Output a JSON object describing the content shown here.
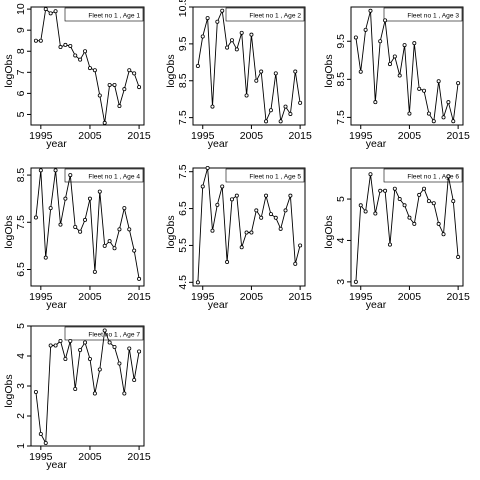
{
  "chart_data": [
    {
      "type": "line",
      "title": "Fleet no 1 , Age 1",
      "xlabel": "year",
      "ylabel": "logObs",
      "xlim": [
        1993,
        2016
      ],
      "ylim": [
        4.5,
        10.1
      ],
      "xticks": [
        1995,
        2005,
        2015
      ],
      "yticks": [
        5,
        6,
        7,
        8,
        9,
        10
      ],
      "x": [
        1994,
        1995,
        1996,
        1997,
        1998,
        1999,
        2000,
        2001,
        2002,
        2003,
        2004,
        2005,
        2006,
        2007,
        2008,
        2009,
        2010,
        2011,
        2012,
        2013,
        2014,
        2015
      ],
      "y": [
        8.5,
        8.5,
        10.0,
        9.8,
        9.9,
        8.2,
        8.3,
        8.25,
        7.8,
        7.6,
        8.0,
        7.2,
        7.1,
        5.9,
        4.6,
        6.4,
        6.4,
        5.4,
        6.2,
        7.1,
        6.95,
        6.3
      ]
    },
    {
      "type": "line",
      "title": "Fleet no 1 , Age 2",
      "xlabel": "year",
      "ylabel": "logObs",
      "xlim": [
        1993,
        2016
      ],
      "ylim": [
        7.3,
        10.5
      ],
      "xticks": [
        1995,
        2005,
        2015
      ],
      "yticks": [
        7.5,
        8.5,
        9.5,
        10.5
      ],
      "x": [
        1994,
        1995,
        1996,
        1997,
        1998,
        1999,
        2000,
        2001,
        2002,
        2003,
        2004,
        2005,
        2006,
        2007,
        2008,
        2009,
        2010,
        2011,
        2012,
        2013,
        2014,
        2015
      ],
      "y": [
        8.9,
        9.7,
        10.2,
        7.8,
        10.1,
        10.4,
        9.4,
        9.6,
        9.35,
        9.8,
        8.1,
        9.75,
        8.5,
        8.75,
        7.4,
        7.7,
        8.7,
        7.4,
        7.8,
        7.6,
        8.75,
        7.9
      ]
    },
    {
      "type": "line",
      "title": "Fleet no 1 , Age 3",
      "xlabel": "year",
      "ylabel": "logObs",
      "xlim": [
        1993,
        2016
      ],
      "ylim": [
        7.3,
        10.4
      ],
      "xticks": [
        1995,
        2005,
        2015
      ],
      "yticks": [
        7.5,
        8.5,
        9.5
      ],
      "x": [
        1994,
        1995,
        1996,
        1997,
        1998,
        1999,
        2000,
        2001,
        2002,
        2003,
        2004,
        2005,
        2006,
        2007,
        2008,
        2009,
        2010,
        2011,
        2012,
        2013,
        2014,
        2015
      ],
      "y": [
        9.6,
        8.7,
        9.8,
        10.3,
        7.9,
        9.5,
        10.05,
        8.9,
        9.1,
        8.6,
        9.4,
        7.6,
        9.45,
        8.25,
        8.2,
        7.6,
        7.4,
        8.45,
        7.5,
        7.9,
        7.4,
        8.4
      ]
    },
    {
      "type": "line",
      "title": "Fleet no 1 , Age 4",
      "xlabel": "year",
      "ylabel": "logObs",
      "xlim": [
        1993,
        2016
      ],
      "ylim": [
        6.15,
        8.65
      ],
      "xticks": [
        1995,
        2005,
        2015
      ],
      "yticks": [
        6.5,
        7.5,
        8.5
      ],
      "x": [
        1994,
        1995,
        1996,
        1997,
        1998,
        1999,
        2000,
        2001,
        2002,
        2003,
        2004,
        2005,
        2006,
        2007,
        2008,
        2009,
        2010,
        2011,
        2012,
        2013,
        2014,
        2015
      ],
      "y": [
        7.6,
        8.6,
        6.75,
        7.8,
        8.6,
        7.45,
        8.0,
        8.5,
        7.4,
        7.3,
        7.55,
        8.0,
        6.45,
        8.15,
        7.0,
        7.1,
        6.95,
        7.35,
        7.8,
        7.35,
        6.9,
        6.3
      ]
    },
    {
      "type": "line",
      "title": "Fleet no 1 , Age 5",
      "xlabel": "year",
      "ylabel": "logObs",
      "xlim": [
        1993,
        2016
      ],
      "ylim": [
        4.4,
        7.6
      ],
      "xticks": [
        1995,
        2005,
        2015
      ],
      "yticks": [
        4.5,
        5.5,
        6.5,
        7.5
      ],
      "x": [
        1994,
        1995,
        1996,
        1997,
        1998,
        1999,
        2000,
        2001,
        2002,
        2003,
        2004,
        2005,
        2006,
        2007,
        2008,
        2009,
        2010,
        2011,
        2012,
        2013,
        2014,
        2015
      ],
      "y": [
        4.5,
        7.1,
        7.6,
        5.9,
        6.6,
        7.1,
        5.05,
        6.75,
        6.85,
        5.45,
        5.85,
        5.85,
        6.45,
        6.25,
        6.85,
        6.35,
        6.25,
        5.95,
        6.45,
        6.85,
        5.0,
        5.5
      ]
    },
    {
      "type": "line",
      "title": "Fleet no 1 , Age 6",
      "xlabel": "year",
      "ylabel": "logObs",
      "xlim": [
        1993,
        2016
      ],
      "ylim": [
        2.9,
        5.75
      ],
      "xticks": [
        1995,
        2005,
        2015
      ],
      "yticks": [
        3.0,
        4.0,
        5.0
      ],
      "x": [
        1994,
        1995,
        1996,
        1997,
        1998,
        1999,
        2000,
        2001,
        2002,
        2003,
        2004,
        2005,
        2006,
        2007,
        2008,
        2009,
        2010,
        2011,
        2012,
        2013,
        2014,
        2015
      ],
      "y": [
        3.0,
        4.85,
        4.7,
        5.6,
        4.65,
        5.2,
        5.2,
        3.9,
        5.25,
        5.0,
        4.85,
        4.55,
        4.4,
        5.1,
        5.25,
        4.95,
        4.9,
        4.4,
        4.15,
        5.55,
        4.95,
        3.6
      ]
    },
    {
      "type": "line",
      "title": "Fleet no 1 , Age 7",
      "xlabel": "year",
      "ylabel": "logObs",
      "xlim": [
        1993,
        2016
      ],
      "ylim": [
        1.0,
        5.0
      ],
      "xticks": [
        1995,
        2005,
        2015
      ],
      "yticks": [
        1,
        2,
        3,
        4,
        5
      ],
      "x": [
        1994,
        1995,
        1996,
        1997,
        1998,
        1999,
        2000,
        2001,
        2002,
        2003,
        2004,
        2005,
        2006,
        2007,
        2008,
        2009,
        2010,
        2011,
        2012,
        2013,
        2014,
        2015
      ],
      "y": [
        2.8,
        1.4,
        1.1,
        4.35,
        4.35,
        4.5,
        3.9,
        4.5,
        2.9,
        4.2,
        4.45,
        3.9,
        2.75,
        3.55,
        4.85,
        4.45,
        4.3,
        3.75,
        2.75,
        4.25,
        3.2,
        4.15
      ]
    }
  ]
}
